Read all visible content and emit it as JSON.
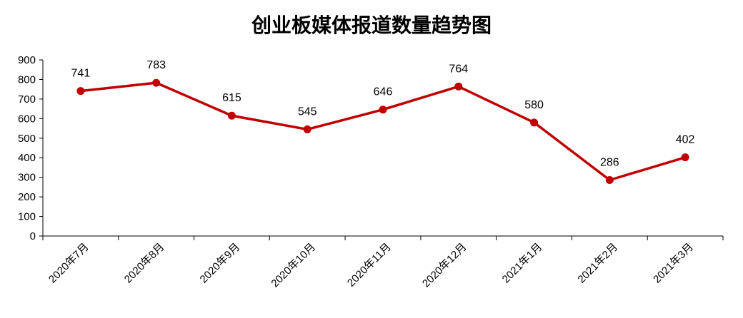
{
  "chart_data": {
    "type": "line",
    "title": "创业板媒体报道数量趋势图",
    "categories": [
      "2020年7月",
      "2020年8月",
      "2020年9月",
      "2020年10月",
      "2020年11月",
      "2020年12月",
      "2021年1月",
      "2021年2月",
      "2021年3月"
    ],
    "series": [
      {
        "values": [
          741,
          783,
          615,
          545,
          646,
          764,
          580,
          286,
          402
        ]
      }
    ],
    "xlabel": "",
    "ylabel": "",
    "ylim": [
      0,
      900
    ],
    "yticks": [
      "0",
      "100",
      "200",
      "300",
      "400",
      "500",
      "600",
      "700",
      "800",
      "900"
    ],
    "data_labels": [
      "741",
      "783",
      "615",
      "545",
      "646",
      "764",
      "580",
      "286",
      "402"
    ],
    "grid": false,
    "legend": "none",
    "colors": {
      "line": "#C00000",
      "axis": "#000000"
    }
  }
}
